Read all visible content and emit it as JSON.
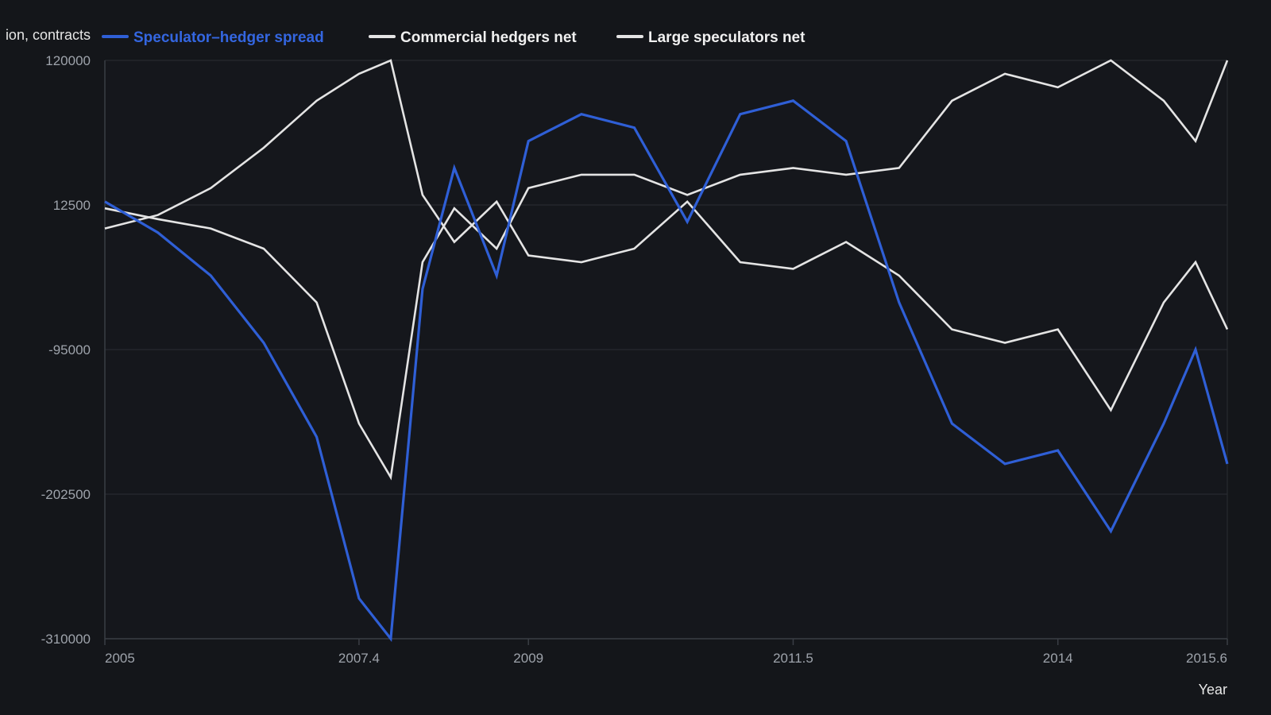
{
  "chart_data": {
    "type": "line",
    "title": "",
    "xlabel": "Year",
    "ylabel": "ion, contracts",
    "xlim": [
      2005,
      2015.6
    ],
    "ylim": [
      -310000,
      120000
    ],
    "x_ticks": [
      {
        "value": 2005,
        "label": "2005"
      },
      {
        "value": 2007.4,
        "label": "2007.4"
      },
      {
        "value": 2009,
        "label": "2009"
      },
      {
        "value": 2011.5,
        "label": "2011.5"
      },
      {
        "value": 2014,
        "label": "2014"
      },
      {
        "value": 2015.6,
        "label": "2015.6"
      }
    ],
    "y_ticks": [
      {
        "value": 120000,
        "label": "120000"
      },
      {
        "value": 12500,
        "label": "12500"
      },
      {
        "value": -95000,
        "label": "-95000"
      },
      {
        "value": -202500,
        "label": "-202500"
      },
      {
        "value": -310000,
        "label": "-310000"
      }
    ],
    "grid": true,
    "legend_position": "top",
    "x": [
      2005,
      2005.5,
      2006,
      2006.5,
      2007,
      2007.4,
      2007.7,
      2008,
      2008.3,
      2008.7,
      2009,
      2009.5,
      2010,
      2010.5,
      2011,
      2011.5,
      2012,
      2012.5,
      2013,
      2013.5,
      2014,
      2014.5,
      2015,
      2015.3,
      2015.6
    ],
    "series": [
      {
        "name": "Speculator–hedger spread",
        "color": "#2f5fd6",
        "values": [
          15000,
          -8000,
          -40000,
          -90000,
          -160000,
          -280000,
          -310000,
          -50000,
          40000,
          -40000,
          60000,
          80000,
          70000,
          0,
          80000,
          90000,
          60000,
          -60000,
          -150000,
          -180000,
          -170000,
          -230000,
          -150000,
          -95000,
          -180000
        ]
      },
      {
        "name": "Commercial hedgers net",
        "color": "#e4e4e4",
        "values": [
          10000,
          2000,
          -5000,
          -20000,
          -60000,
          -150000,
          -190000,
          -30000,
          10000,
          -20000,
          25000,
          35000,
          35000,
          20000,
          35000,
          40000,
          35000,
          40000,
          90000,
          110000,
          100000,
          120000,
          90000,
          60000,
          120000
        ]
      },
      {
        "name": "Large speculators net",
        "color": "#e4e4e4",
        "values": [
          -5000,
          5000,
          25000,
          55000,
          90000,
          110000,
          120000,
          20000,
          -15000,
          15000,
          -25000,
          -30000,
          -20000,
          15000,
          -30000,
          -35000,
          -15000,
          -40000,
          -80000,
          -90000,
          -80000,
          -140000,
          -60000,
          -30000,
          -80000
        ]
      }
    ]
  }
}
